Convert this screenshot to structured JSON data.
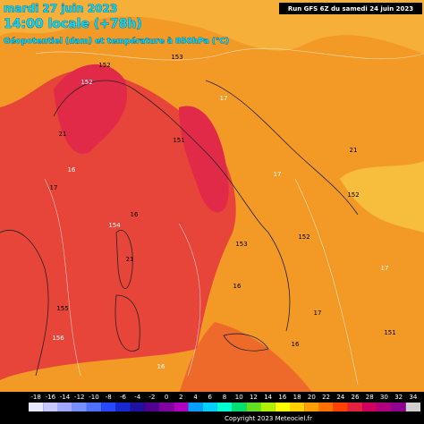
{
  "header": {
    "date": "mardi 27 juin 2023",
    "time": "14:00 locale (+78h)",
    "subtitle": "Géopotentiel (dam) et température à 850hPa (°C)",
    "run": "Run GFS 6Z du samedi 24 juin 2023"
  },
  "map_labels": [
    "152",
    "152",
    "153",
    "21",
    "16",
    "17",
    "151",
    "154",
    "21",
    "155",
    "156",
    "153",
    "16",
    "17",
    "151",
    "152",
    "16",
    "17",
    "21",
    "17",
    "16",
    "16",
    "17",
    "152"
  ],
  "scale": [
    "-18",
    "-16",
    "-14",
    "-12",
    "-10",
    "-8",
    "-6",
    "-4",
    "-2",
    "0",
    "2",
    "4",
    "6",
    "8",
    "10",
    "12",
    "14",
    "16",
    "18",
    "20",
    "22",
    "24",
    "26",
    "28",
    "30",
    "32",
    "34"
  ],
  "footer": "Copyright 2023 Meteociel.fr"
}
